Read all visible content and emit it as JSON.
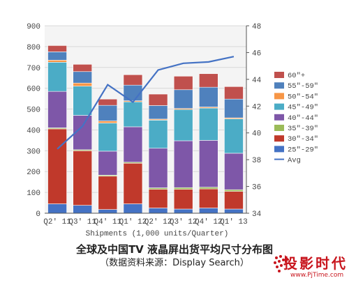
{
  "chart_data": {
    "type": "bar",
    "stacked": true,
    "categories": [
      "Q2' 11",
      "Q3' 11",
      "Q4' 11",
      "Q1' 12",
      "Q2' 12",
      "Q3' 12",
      "Q4' 12",
      "Q1' 13"
    ],
    "xlabel": "Shipments (1,000 units/Quarter)",
    "ylim": [
      0,
      900
    ],
    "yticks": [
      0,
      100,
      200,
      300,
      400,
      500,
      600,
      700,
      800,
      900
    ],
    "y2lim": [
      34,
      48
    ],
    "y2ticks": [
      34,
      36,
      38,
      40,
      42,
      44,
      46,
      48
    ],
    "grid": true,
    "legend_position": "right",
    "series": [
      {
        "name": "25\"-29\"",
        "color": "#4472c4",
        "values": [
          45,
          38,
          18,
          45,
          25,
          20,
          25,
          20
        ]
      },
      {
        "name": "30\"-34\"",
        "color": "#c0392b",
        "values": [
          360,
          262,
          160,
          195,
          90,
          95,
          92,
          85
        ]
      },
      {
        "name": "35\"-39\"",
        "color": "#9bbb59",
        "values": [
          5,
          5,
          5,
          5,
          7,
          8,
          8,
          8
        ]
      },
      {
        "name": "40\"-44\"",
        "color": "#7e57a8",
        "values": [
          175,
          165,
          115,
          170,
          190,
          225,
          225,
          175
        ]
      },
      {
        "name": "45\"-49\"",
        "color": "#4bacc6",
        "values": [
          140,
          140,
          135,
          120,
          135,
          150,
          155,
          165
        ]
      },
      {
        "name": "50\"-54\"",
        "color": "#f79646",
        "values": [
          10,
          15,
          10,
          5,
          5,
          5,
          5,
          5
        ]
      },
      {
        "name": "55\"-59\"",
        "color": "#4f81bd",
        "values": [
          40,
          55,
          75,
          75,
          65,
          90,
          95,
          90
        ]
      },
      {
        "name": "60\"+",
        "color": "#c0504d",
        "values": [
          30,
          35,
          30,
          50,
          55,
          65,
          65,
          60
        ]
      }
    ],
    "avg_series": {
      "name": "Avg",
      "color": "#4472c4",
      "values": [
        38.8,
        40.5,
        43.6,
        42.3,
        44.7,
        45.2,
        45.3,
        45.7
      ]
    }
  },
  "caption": {
    "line1": "全球及中国TV 液晶屏出货平均尺寸分布图",
    "line2": "（数据资料来源：Display Search）"
  },
  "logo": {
    "text": "投影时代",
    "url": "www.PjTime.com"
  }
}
